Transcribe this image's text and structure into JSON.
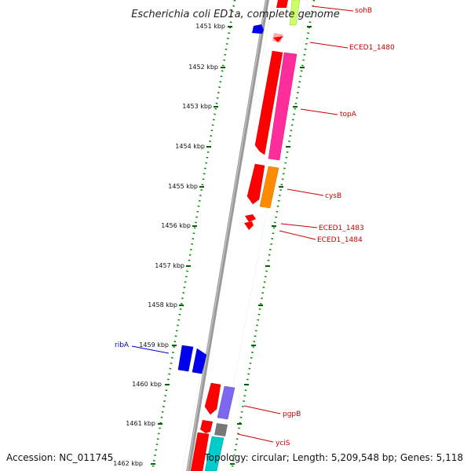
{
  "title": "Escherichia coli ED1a, complete genome",
  "footer": {
    "accession": "Accession: NC_011745",
    "topology": "Topology: circular; Length: 5,209,548 bp; Genes: 5,118"
  },
  "ticks": [
    "1451 kbp",
    "1452 kbp",
    "1453 kbp",
    "1454 kbp",
    "1455 kbp",
    "1456 kbp",
    "1457 kbp",
    "1458 kbp",
    "1459 kbp",
    "1460 kbp",
    "1461 kbp",
    "1462 kbp"
  ],
  "gene_labels": {
    "sohB": "sohB",
    "eced1_1480": "ECED1_1480",
    "topA": "topA",
    "cysB": "cysB",
    "eced1_1483": "ECED1_1483",
    "eced1_1484": "ECED1_1484",
    "ribA": "ribA",
    "pgpB": "pgpB",
    "yciS": "yciS"
  },
  "colors": {
    "red": "#ff0000",
    "magenta": "#ff2d9c",
    "orange": "#ff8c00",
    "blue": "#0000ff",
    "purple": "#7b68ee",
    "lime": "#ccff66",
    "gray": "#777777",
    "cyan": "#00cccc",
    "tick_green": "#006600",
    "backbone": "#888888"
  }
}
